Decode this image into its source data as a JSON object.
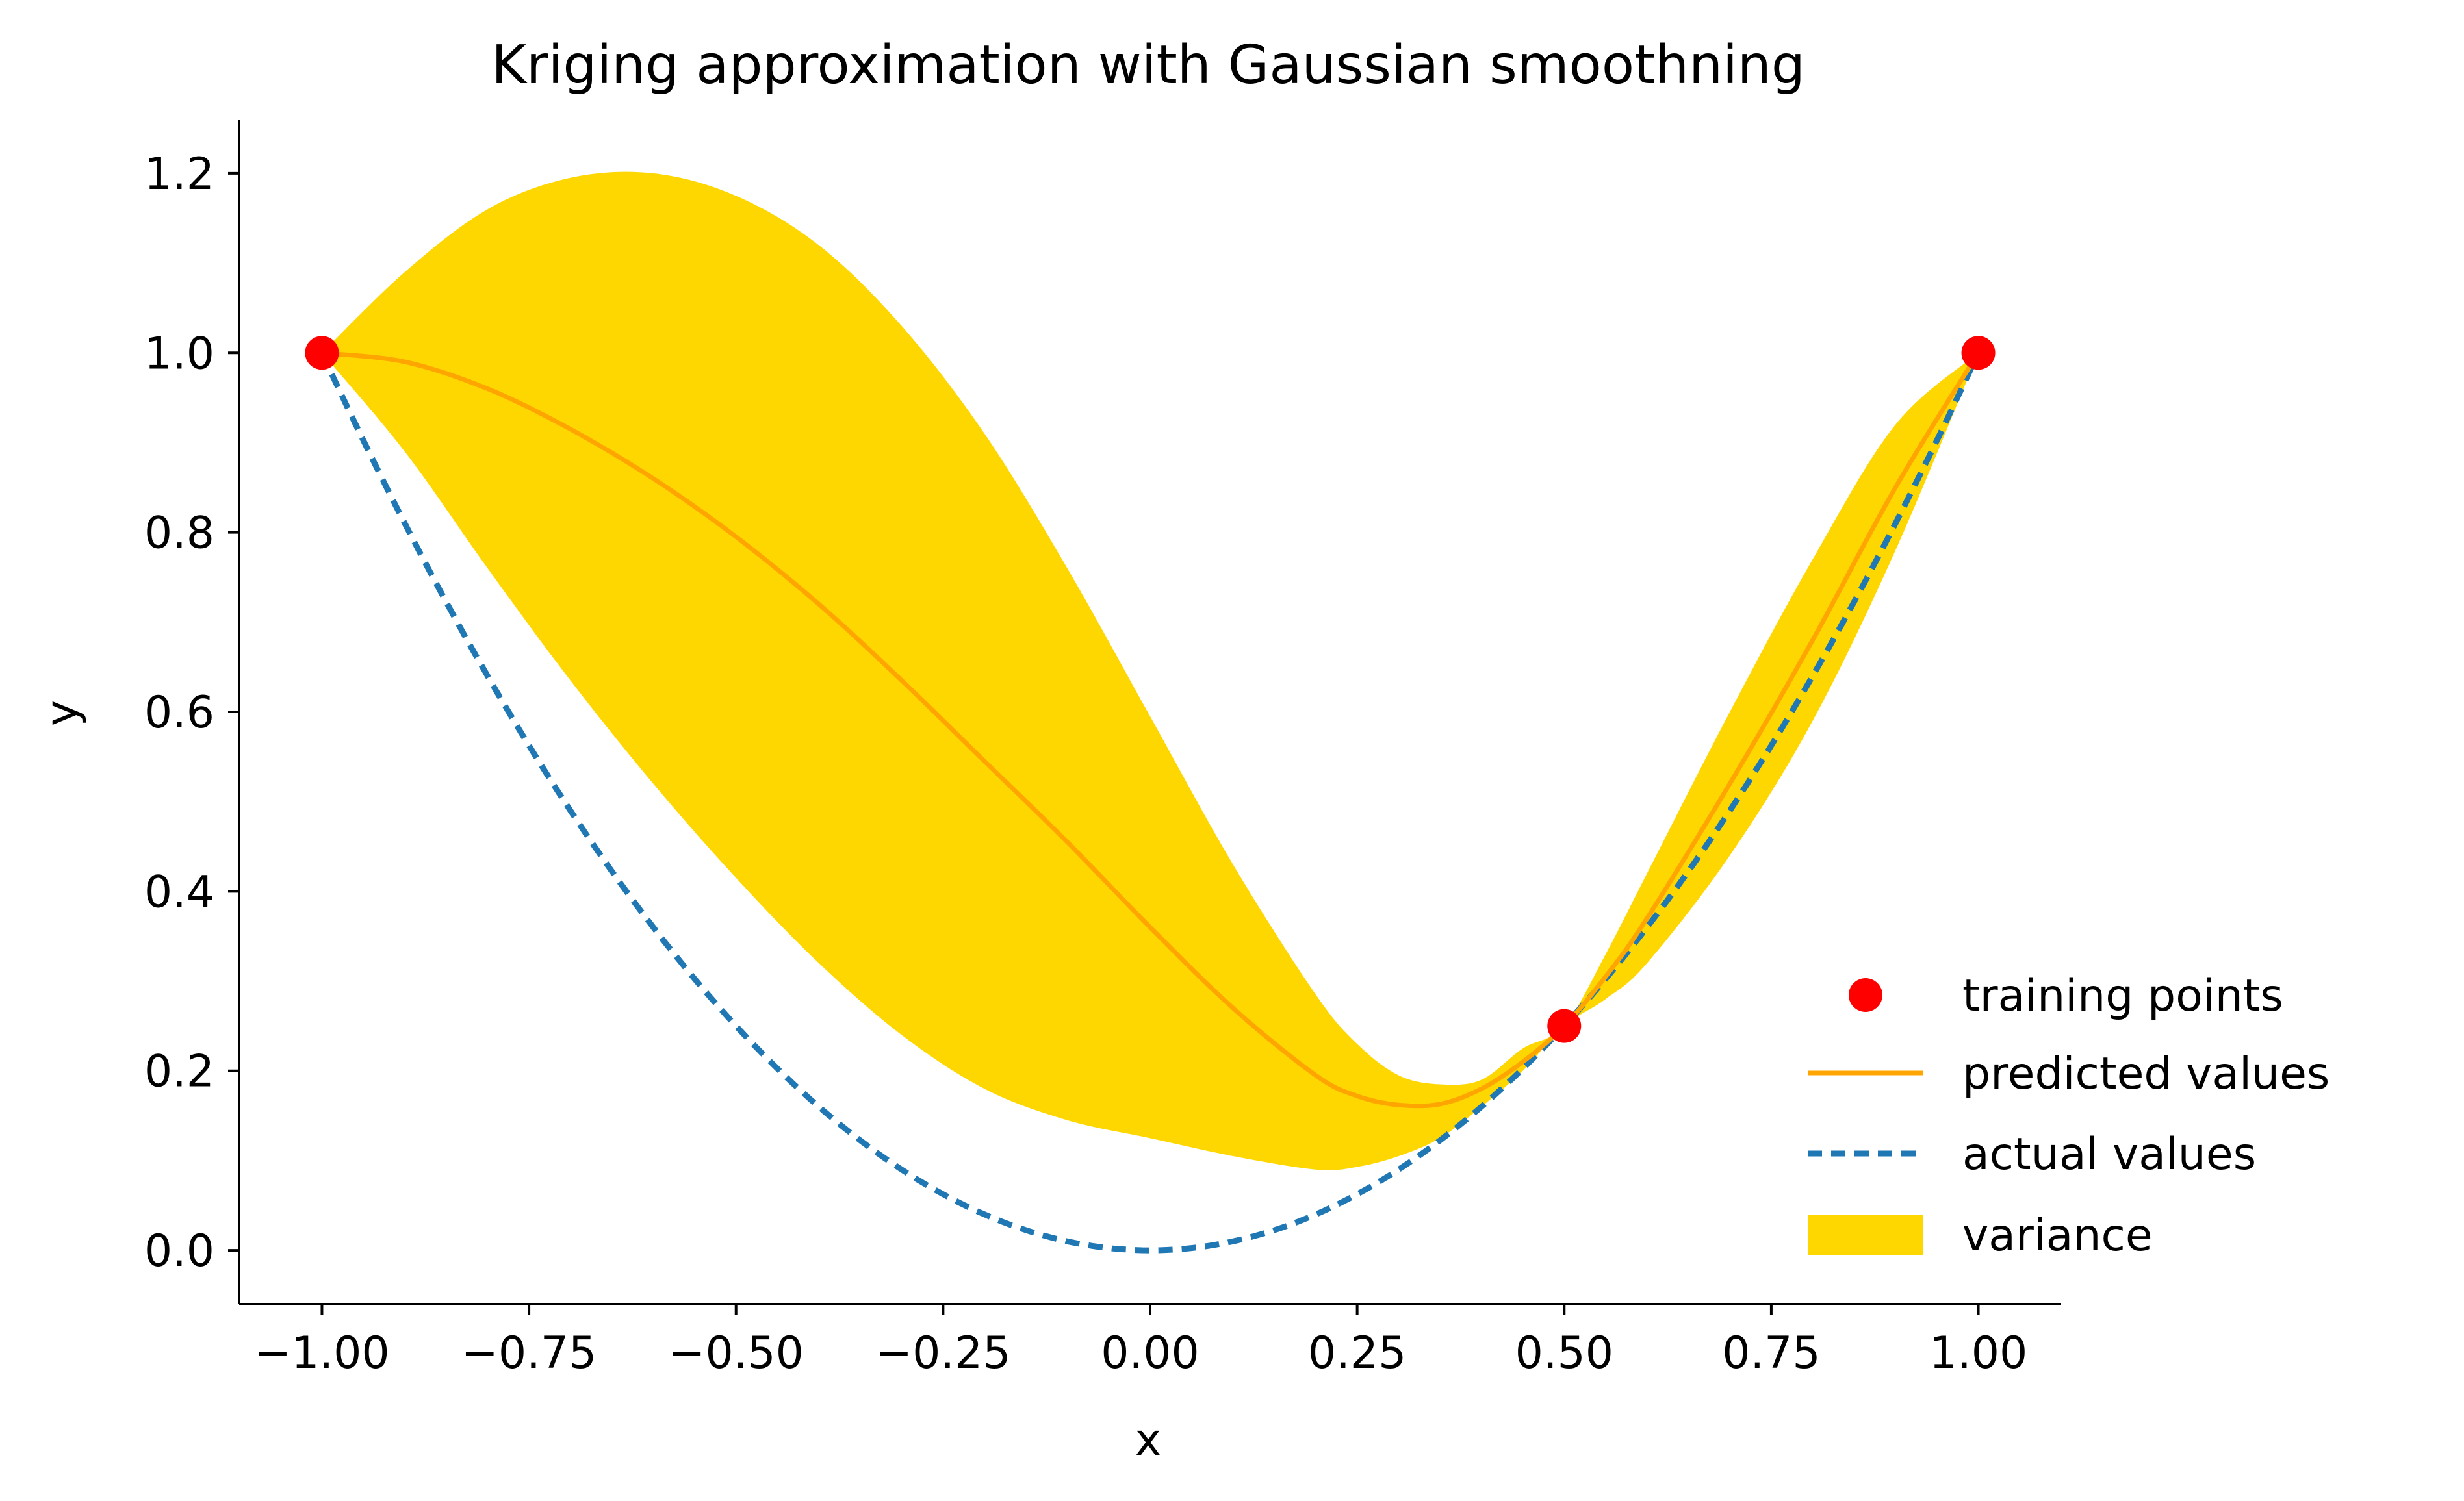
{
  "chart_data": {
    "type": "line",
    "title": "Kriging approximation with Gaussian smoothning",
    "xlabel": "x",
    "ylabel": "y",
    "xlim": [
      -1.1,
      1.1
    ],
    "ylim": [
      -0.06,
      1.26
    ],
    "x_ticks": [
      -1.0,
      -0.75,
      -0.5,
      -0.25,
      0.0,
      0.25,
      0.5,
      0.75,
      1.0
    ],
    "x_tick_labels": [
      "−1.00",
      "−0.75",
      "−0.50",
      "−0.25",
      "0.00",
      "0.25",
      "0.50",
      "0.75",
      "1.00"
    ],
    "y_ticks": [
      0.0,
      0.2,
      0.4,
      0.6,
      0.8,
      1.0,
      1.2
    ],
    "y_tick_labels": [
      "0.0",
      "0.2",
      "0.4",
      "0.6",
      "0.8",
      "1.0",
      "1.2"
    ],
    "grid": false,
    "legend_position": "lower-right",
    "colors": {
      "training": "#ff0000",
      "predicted": "#ffa500",
      "actual": "#1f77b4",
      "variance": "#ffd700"
    },
    "training_points": {
      "name": "training points",
      "x": [
        -1.0,
        0.5,
        1.0
      ],
      "y": [
        1.0,
        0.25,
        1.0
      ]
    },
    "predicted": {
      "name": "predicted values",
      "x": [
        -1.0,
        -0.9,
        -0.8,
        -0.7,
        -0.6,
        -0.5,
        -0.4,
        -0.3,
        -0.2,
        -0.1,
        0.0,
        0.1,
        0.2,
        0.25,
        0.3,
        0.35,
        0.4,
        0.45,
        0.5,
        0.55,
        0.6,
        0.7,
        0.8,
        0.9,
        1.0
      ],
      "y": [
        1.0,
        0.99,
        0.96,
        0.915,
        0.86,
        0.795,
        0.72,
        0.635,
        0.545,
        0.455,
        0.36,
        0.27,
        0.195,
        0.172,
        0.162,
        0.163,
        0.18,
        0.21,
        0.25,
        0.305,
        0.37,
        0.52,
        0.68,
        0.85,
        1.0
      ]
    },
    "actual": {
      "name": "actual values",
      "function": "x^2",
      "x_range": [
        -1.0,
        1.0
      ]
    },
    "variance": {
      "name": "variance",
      "x": [
        -1.0,
        -0.9,
        -0.8,
        -0.7,
        -0.6,
        -0.5,
        -0.4,
        -0.3,
        -0.2,
        -0.1,
        0.0,
        0.1,
        0.2,
        0.25,
        0.3,
        0.35,
        0.4,
        0.45,
        0.5,
        0.55,
        0.6,
        0.7,
        0.8,
        0.9,
        1.0
      ],
      "upper": [
        1.0,
        1.09,
        1.16,
        1.195,
        1.2,
        1.175,
        1.12,
        1.03,
        0.91,
        0.76,
        0.595,
        0.43,
        0.285,
        0.23,
        0.195,
        0.185,
        0.19,
        0.225,
        0.25,
        0.33,
        0.42,
        0.6,
        0.77,
        0.92,
        1.0
      ],
      "lower": [
        1.0,
        0.89,
        0.76,
        0.635,
        0.52,
        0.415,
        0.32,
        0.24,
        0.18,
        0.145,
        0.125,
        0.105,
        0.09,
        0.093,
        0.105,
        0.125,
        0.16,
        0.2,
        0.25,
        0.28,
        0.32,
        0.44,
        0.59,
        0.78,
        1.0
      ]
    }
  }
}
